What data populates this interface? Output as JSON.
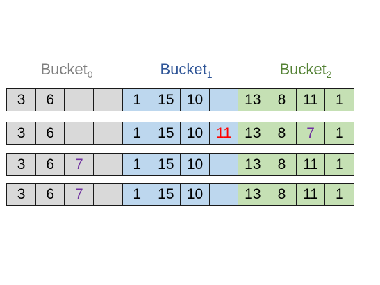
{
  "colors": {
    "bucket0": "#7f7f7f",
    "bucket1": "#2f5597",
    "bucket2": "#548235",
    "fill0": "#d9d9d9",
    "fill1": "#bdd7ee",
    "fill2": "#c5e0b4",
    "default_text": "#000000",
    "highlight_red": "#ff0000",
    "highlight_purple": "#7030a0"
  },
  "buckets": [
    {
      "name": "Bucket",
      "index": "0"
    },
    {
      "name": "Bucket",
      "index": "1"
    },
    {
      "name": "Bucket",
      "index": "2"
    }
  ],
  "rows": [
    {
      "cells": [
        {
          "text": "3",
          "group": 0
        },
        {
          "text": "6",
          "group": 0
        },
        {
          "text": "",
          "group": 0
        },
        {
          "text": "",
          "group": 0
        },
        {
          "text": "1",
          "group": 1
        },
        {
          "text": "15",
          "group": 1
        },
        {
          "text": "10",
          "group": 1
        },
        {
          "text": "",
          "group": 1
        },
        {
          "text": "13",
          "group": 2
        },
        {
          "text": "8",
          "group": 2
        },
        {
          "text": "11",
          "group": 2
        },
        {
          "text": "1",
          "group": 2
        }
      ]
    },
    {
      "cells": [
        {
          "text": "3",
          "group": 0
        },
        {
          "text": "6",
          "group": 0
        },
        {
          "text": "",
          "group": 0
        },
        {
          "text": "",
          "group": 0
        },
        {
          "text": "1",
          "group": 1
        },
        {
          "text": "15",
          "group": 1
        },
        {
          "text": "10",
          "group": 1
        },
        {
          "text": "11",
          "group": 1,
          "color": "#ff0000"
        },
        {
          "text": "13",
          "group": 2
        },
        {
          "text": "8",
          "group": 2
        },
        {
          "text": "7",
          "group": 2,
          "color": "#7030a0"
        },
        {
          "text": "1",
          "group": 2
        }
      ]
    },
    {
      "cells": [
        {
          "text": "3",
          "group": 0
        },
        {
          "text": "6",
          "group": 0
        },
        {
          "text": "7",
          "group": 0,
          "color": "#7030a0"
        },
        {
          "text": "",
          "group": 0
        },
        {
          "text": "1",
          "group": 1
        },
        {
          "text": "15",
          "group": 1
        },
        {
          "text": "10",
          "group": 1
        },
        {
          "text": "",
          "group": 1
        },
        {
          "text": "13",
          "group": 2
        },
        {
          "text": "8",
          "group": 2
        },
        {
          "text": "11",
          "group": 2
        },
        {
          "text": "1",
          "group": 2
        }
      ]
    },
    {
      "cells": [
        {
          "text": "3",
          "group": 0
        },
        {
          "text": "6",
          "group": 0
        },
        {
          "text": "7",
          "group": 0,
          "color": "#7030a0"
        },
        {
          "text": "",
          "group": 0
        },
        {
          "text": "1",
          "group": 1
        },
        {
          "text": "15",
          "group": 1
        },
        {
          "text": "10",
          "group": 1
        },
        {
          "text": "",
          "group": 1
        },
        {
          "text": "13",
          "group": 2
        },
        {
          "text": "8",
          "group": 2
        },
        {
          "text": "11",
          "group": 2
        },
        {
          "text": "1",
          "group": 2
        }
      ]
    }
  ]
}
